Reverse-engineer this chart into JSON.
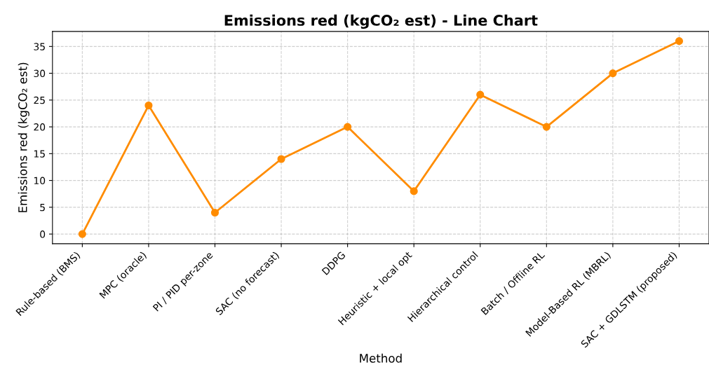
{
  "chart_data": {
    "type": "line",
    "title": "Emissions red (kgCO₂ est) - Line Chart",
    "xlabel": "Method",
    "ylabel": "Emissions red (kgCO₂ est)",
    "categories": [
      "Rule-based (BMS)",
      "MPC (oracle)",
      "PI / PID per-zone",
      "SAC (no forecast)",
      "DDPG",
      "Heuristic + local opt",
      "Hierarchical control",
      "Batch / Offline RL",
      "Model-Based RL (MBRL)",
      "SAC + GDLSTM (proposed)"
    ],
    "series": [
      {
        "color": "#ff8c00",
        "values": [
          0,
          24,
          4,
          14,
          20,
          8,
          26,
          20,
          30,
          36
        ]
      }
    ],
    "ylim": [
      -1.8,
      37.8
    ],
    "yticks": [
      0,
      5,
      10,
      15,
      20,
      25,
      30,
      35
    ],
    "grid": true,
    "marker": "circle",
    "line_style": "solid"
  }
}
